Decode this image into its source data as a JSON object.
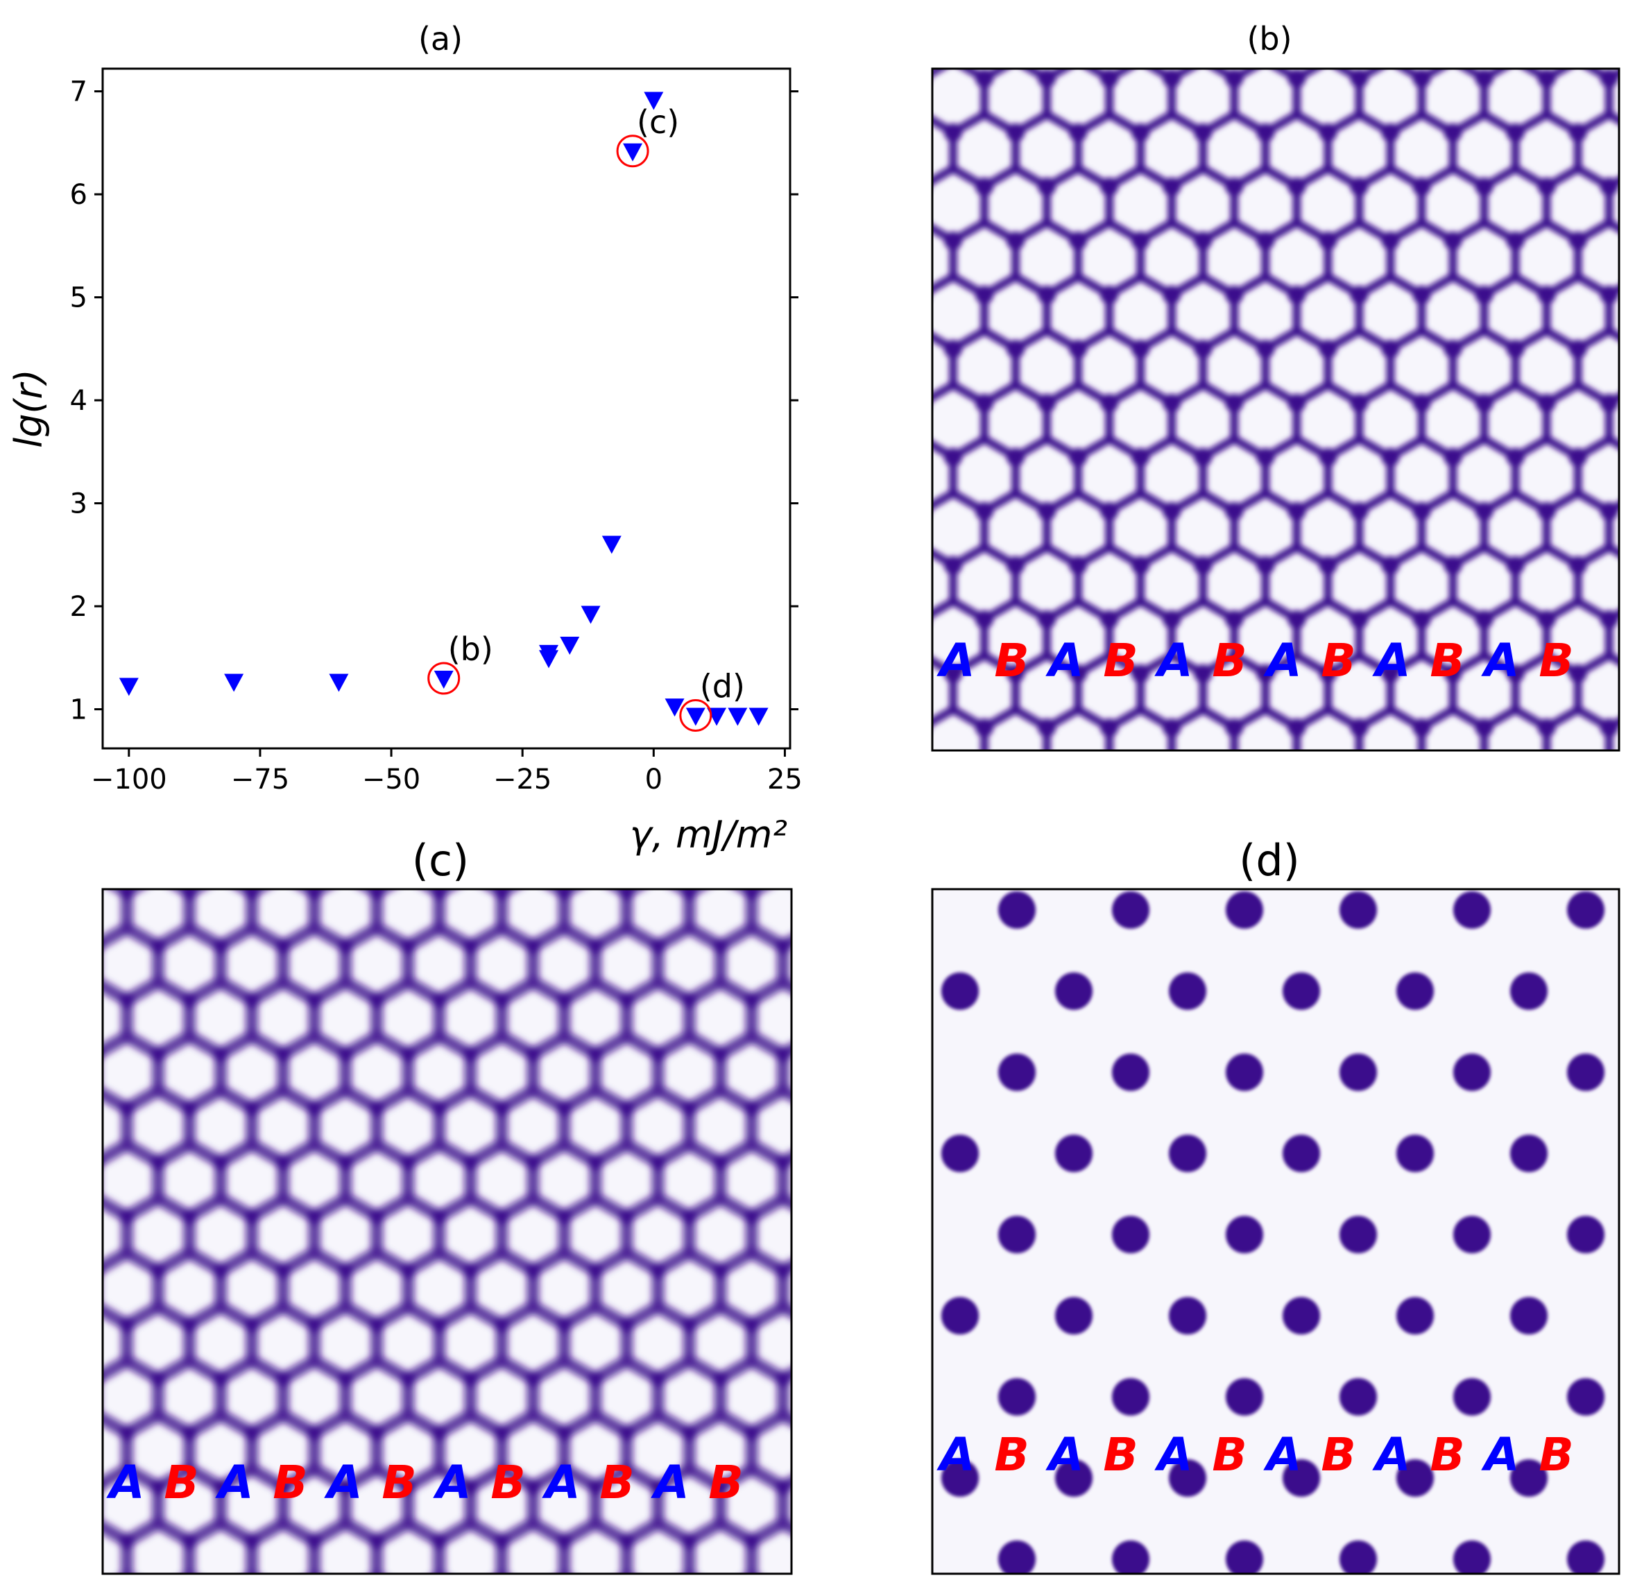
{
  "colors": {
    "marker": "#0000ff",
    "highlight": "#ff0000",
    "phase": "#3a0a8c",
    "letter_a": "#0000ff",
    "letter_b": "#ff0000"
  },
  "chart_data": [
    {
      "type": "scatter",
      "title": "(a)",
      "xlabel": "γ, mJ/m²",
      "ylabel": "lg(r)",
      "xlim": [
        -105,
        26
      ],
      "ylim": [
        0.62,
        7.22
      ],
      "xticks": [
        -100,
        -75,
        -50,
        -25,
        0,
        25
      ],
      "xtick_labels": [
        "−100",
        "−75",
        "−50",
        "−25",
        "0",
        "25"
      ],
      "yticks": [
        1,
        2,
        3,
        4,
        5,
        6,
        7
      ],
      "ytick_labels": [
        "1",
        "2",
        "3",
        "4",
        "5",
        "6",
        "7"
      ],
      "marker": "triangle-down",
      "series": [
        {
          "name": "lg(r)",
          "x": [
            -100,
            -80,
            -60,
            -40,
            -20,
            -20,
            -16,
            -12,
            -8,
            -4,
            0,
            4,
            8,
            12,
            16,
            20
          ],
          "y": [
            1.23,
            1.27,
            1.27,
            1.3,
            1.55,
            1.5,
            1.63,
            1.93,
            2.61,
            6.42,
            6.92,
            1.03,
            0.94,
            0.94,
            0.94,
            0.94
          ]
        }
      ],
      "highlighted": [
        {
          "label": "(b)",
          "x": -40,
          "y": 1.3
        },
        {
          "label": "(c)",
          "x": -4,
          "y": 6.42
        },
        {
          "label": "(d)",
          "x": 8,
          "y": 0.94
        }
      ]
    },
    {
      "type": "heatmap",
      "title": "(b)",
      "pattern": "honeycomb",
      "stacking": [
        "A",
        "B",
        "A",
        "B",
        "A",
        "B",
        "A",
        "B",
        "A",
        "B",
        "A",
        "B"
      ]
    },
    {
      "type": "heatmap",
      "title": "(c)",
      "pattern": "dense honeycomb",
      "stacking": [
        "A",
        "B",
        "A",
        "B",
        "A",
        "B",
        "A",
        "B",
        "A",
        "B",
        "A",
        "B"
      ]
    },
    {
      "type": "heatmap",
      "title": "(d)",
      "pattern": "dots",
      "stacking": [
        "A",
        "B",
        "A",
        "B",
        "A",
        "B",
        "A",
        "B",
        "A",
        "B",
        "A",
        "B"
      ]
    }
  ]
}
